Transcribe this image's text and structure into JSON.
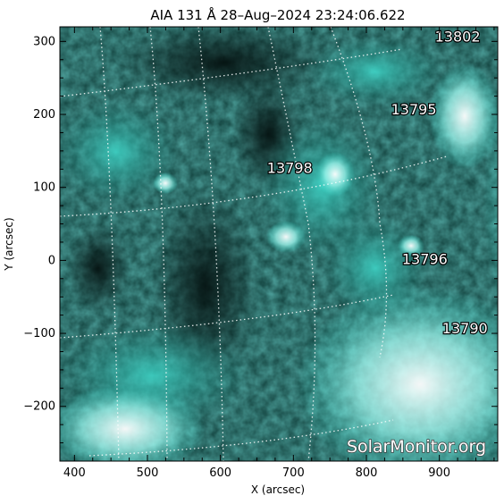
{
  "title": "AIA 131 Å 28–Aug–2024  23:24:06.622",
  "x_axis": {
    "label": "X (arcsec)",
    "range": [
      380,
      980
    ],
    "ticks": [
      400,
      500,
      600,
      700,
      800,
      900
    ],
    "tick_labels": [
      "400",
      "500",
      "600",
      "700",
      "800",
      "900"
    ]
  },
  "y_axis": {
    "label": "Y (arcsec)",
    "range": [
      -275,
      320
    ],
    "ticks": [
      300,
      200,
      100,
      0,
      -100,
      -200
    ],
    "tick_labels": [
      "300",
      "200",
      "100",
      "0",
      "−100",
      "−200"
    ]
  },
  "active_regions": [
    {
      "number": "13802",
      "x": 925,
      "y": 300
    },
    {
      "number": "13795",
      "x": 865,
      "y": 200
    },
    {
      "number": "13798",
      "x": 695,
      "y": 120
    },
    {
      "number": "13796",
      "x": 880,
      "y": -5
    },
    {
      "number": "13790",
      "x": 935,
      "y": -100
    }
  ],
  "watermark": "SolarMonitor.org",
  "colors": {
    "plot_bg": "#0b2a28",
    "emission": "#36e8d8",
    "frame": "#000000",
    "text": "#000000"
  }
}
